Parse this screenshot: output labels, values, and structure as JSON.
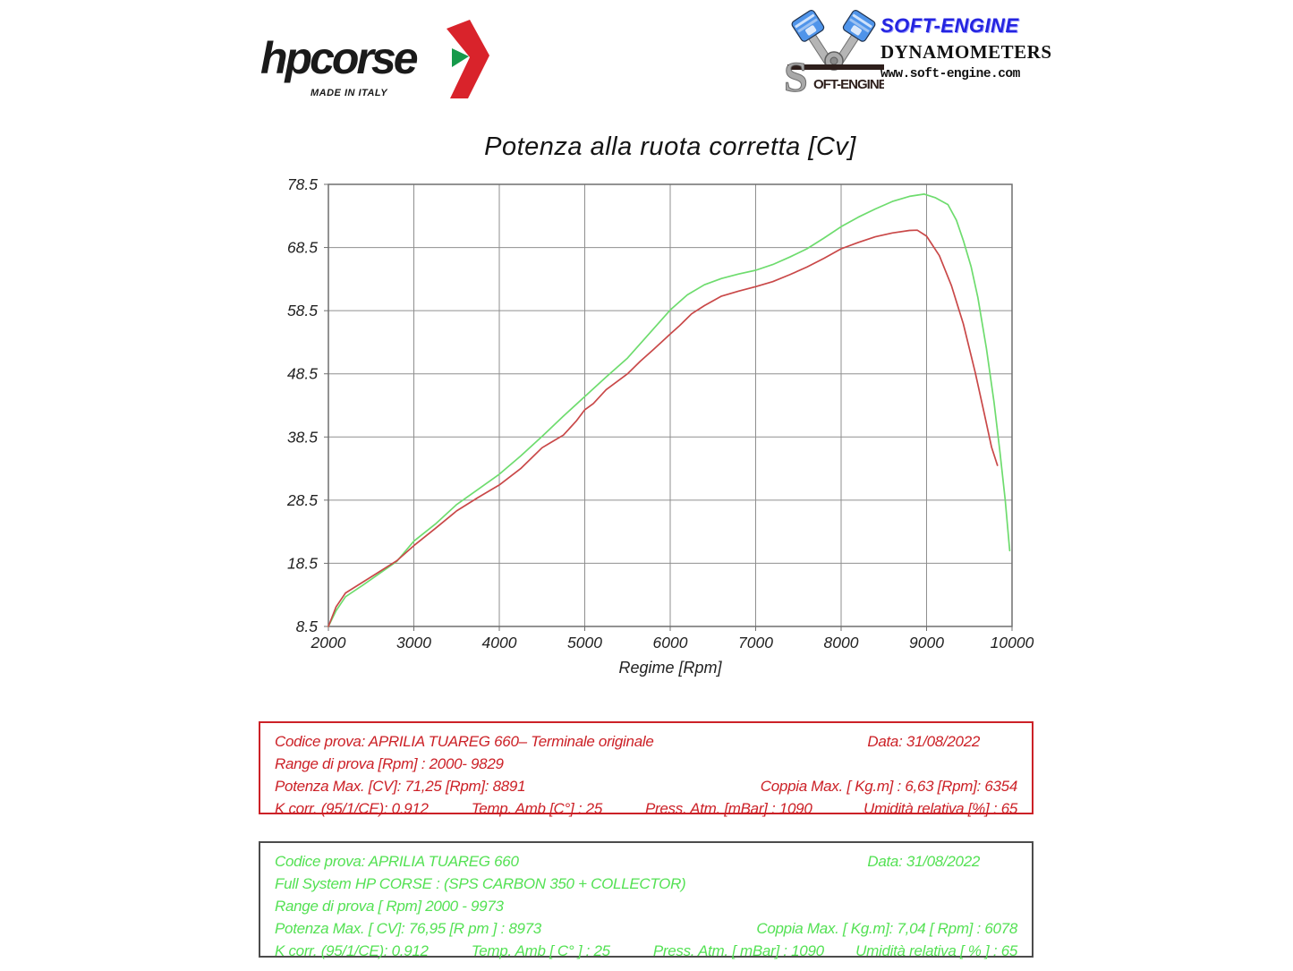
{
  "header": {
    "hpcorse": {
      "brand": "hpcorse",
      "tagline": "MADE IN ITALY",
      "arrow_red": "#d9232b",
      "arrow_green": "#169a4b"
    },
    "softengine": {
      "brand": "SOFT-ENGINE",
      "line1": "DYNAMOMETERS",
      "line2": "www.soft-engine.com",
      "logo_s": "S",
      "logo_rest": "OFT-ENGINE"
    }
  },
  "chart_data": {
    "type": "line",
    "title": "Potenza alla ruota corretta [Cv]",
    "xlabel": "Regime [Rpm]",
    "ylabel": "",
    "xlim": [
      2000,
      10000
    ],
    "ylim": [
      8.5,
      78.5
    ],
    "x_ticks": [
      2000,
      3000,
      4000,
      5000,
      6000,
      7000,
      8000,
      9000,
      10000
    ],
    "y_ticks": [
      8.5,
      18.5,
      28.5,
      38.5,
      48.5,
      58.5,
      68.5,
      78.5
    ],
    "grid": true,
    "grid_color": "#8f8f8f",
    "border_color": "#6f6f6f",
    "legend_position": "none",
    "series": [
      {
        "name": "APRILIA TUAREG 660 - Full System HP CORSE (SPS CARBON 350 + COLLECTOR)",
        "color": "#6edc6e",
        "points": [
          [
            2000,
            8.5
          ],
          [
            2090,
            11.0
          ],
          [
            2200,
            13.2
          ],
          [
            2400,
            15.0
          ],
          [
            2600,
            16.9
          ],
          [
            2800,
            18.8
          ],
          [
            3000,
            22.0
          ],
          [
            3250,
            24.7
          ],
          [
            3500,
            27.8
          ],
          [
            3750,
            30.2
          ],
          [
            4000,
            32.6
          ],
          [
            4250,
            35.5
          ],
          [
            4500,
            38.6
          ],
          [
            4750,
            41.8
          ],
          [
            5000,
            44.9
          ],
          [
            5250,
            48.0
          ],
          [
            5500,
            51.0
          ],
          [
            5750,
            54.8
          ],
          [
            6000,
            58.6
          ],
          [
            6200,
            61.0
          ],
          [
            6400,
            62.6
          ],
          [
            6600,
            63.6
          ],
          [
            6800,
            64.3
          ],
          [
            7000,
            64.9
          ],
          [
            7200,
            65.8
          ],
          [
            7400,
            67.0
          ],
          [
            7600,
            68.3
          ],
          [
            7800,
            70.0
          ],
          [
            8000,
            71.8
          ],
          [
            8200,
            73.3
          ],
          [
            8400,
            74.6
          ],
          [
            8600,
            75.8
          ],
          [
            8800,
            76.6
          ],
          [
            8973,
            76.95
          ],
          [
            9100,
            76.4
          ],
          [
            9250,
            75.3
          ],
          [
            9350,
            72.8
          ],
          [
            9430,
            69.6
          ],
          [
            9520,
            65.5
          ],
          [
            9600,
            60.6
          ],
          [
            9700,
            52.5
          ],
          [
            9790,
            44.0
          ],
          [
            9860,
            36.0
          ],
          [
            9920,
            28.5
          ],
          [
            9973,
            20.5
          ]
        ]
      },
      {
        "name": "APRILIA TUAREG 660 - Terminale originale",
        "color": "#c94848",
        "points": [
          [
            2000,
            8.5
          ],
          [
            2090,
            11.6
          ],
          [
            2200,
            13.8
          ],
          [
            2400,
            15.5
          ],
          [
            2600,
            17.2
          ],
          [
            2800,
            18.9
          ],
          [
            3000,
            21.3
          ],
          [
            3250,
            24.0
          ],
          [
            3500,
            26.8
          ],
          [
            3750,
            28.9
          ],
          [
            4000,
            30.9
          ],
          [
            4250,
            33.5
          ],
          [
            4500,
            36.8
          ],
          [
            4600,
            37.6
          ],
          [
            4750,
            38.8
          ],
          [
            4900,
            41.0
          ],
          [
            5000,
            42.8
          ],
          [
            5100,
            43.8
          ],
          [
            5250,
            46.0
          ],
          [
            5400,
            47.5
          ],
          [
            5500,
            48.5
          ],
          [
            5650,
            50.5
          ],
          [
            5800,
            52.3
          ],
          [
            6000,
            54.8
          ],
          [
            6100,
            56.0
          ],
          [
            6250,
            58.0
          ],
          [
            6400,
            59.3
          ],
          [
            6600,
            60.8
          ],
          [
            6800,
            61.6
          ],
          [
            7000,
            62.3
          ],
          [
            7200,
            63.1
          ],
          [
            7400,
            64.2
          ],
          [
            7600,
            65.4
          ],
          [
            7800,
            66.8
          ],
          [
            8000,
            68.3
          ],
          [
            8200,
            69.3
          ],
          [
            8400,
            70.2
          ],
          [
            8600,
            70.8
          ],
          [
            8800,
            71.2
          ],
          [
            8891,
            71.25
          ],
          [
            9000,
            70.3
          ],
          [
            9150,
            67.2
          ],
          [
            9290,
            62.5
          ],
          [
            9430,
            56.4
          ],
          [
            9570,
            48.7
          ],
          [
            9675,
            42.2
          ],
          [
            9760,
            36.9
          ],
          [
            9829,
            34.0
          ]
        ]
      }
    ]
  },
  "info_boxes": {
    "red": {
      "lines": [
        {
          "left": "Codice prova: APRILIA TUAREG 660– Terminale originale",
          "right": "Data: 31/08/2022"
        },
        {
          "left": "Range di prova  [Rpm] : 2000- 9829",
          "right": ""
        },
        {
          "left": "Potenza Max. [CV]:   71,25 [Rpm]: 8891",
          "right": "Coppia Max. [ Kg.m] :  6,63 [Rpm]: 6354"
        },
        {
          "left": "K corr. (95/1/CE): 0.912",
          "mid1": "Temp. Amb [C°] : 25",
          "mid2": "Press. Atm.  [mBar] : 1090",
          "right": "Umidità relativa [%] : 65"
        }
      ]
    },
    "green": {
      "lines": [
        {
          "left": "Codice prova: APRILIA TUAREG 660",
          "right": "Data: 31/08/2022"
        },
        {
          "left": "Full System HP CORSE :  (SPS CARBON 350 +  COLLECTOR)",
          "right": ""
        },
        {
          "left": "Range di prova [ Rpm]  2000 - 9973",
          "right": ""
        },
        {
          "left": "Potenza Max. [ CV]:  76,95  [R pm ] : 8973",
          "right": "Coppia Max.  [ Kg.m]:  7,04  [ Rpm] : 6078"
        },
        {
          "left": "K corr.  (95/1/CE): 0.912",
          "mid1": "Temp. Amb [ C° ] : 25",
          "mid2": "Press. Atm. [ mBar] : 1090",
          "right": "Umidità relativa [ % ] : 65"
        }
      ]
    }
  }
}
